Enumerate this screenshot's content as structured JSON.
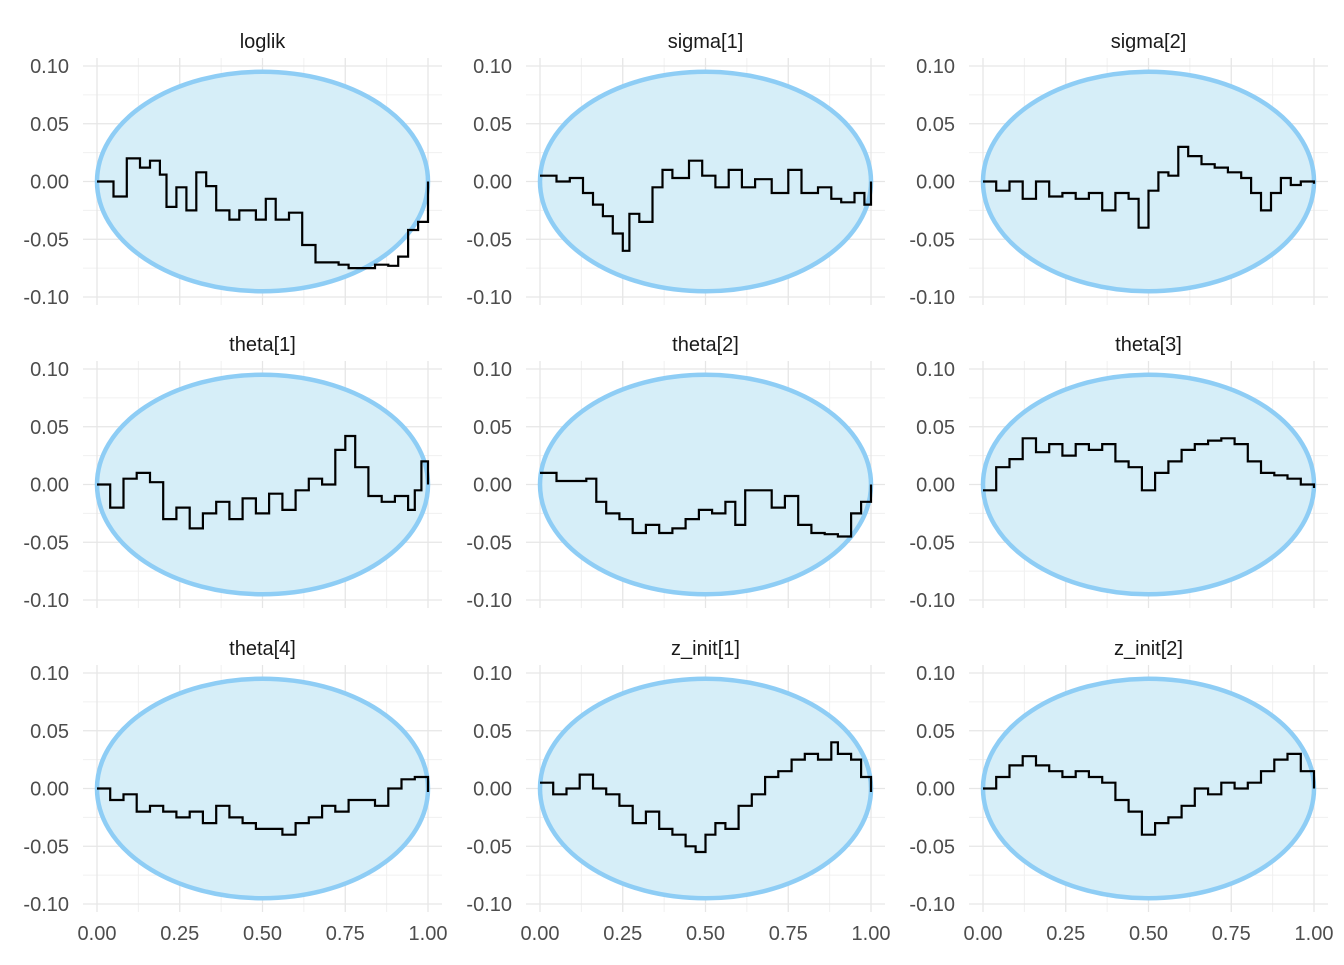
{
  "chart_data": {
    "type": "line",
    "layout": "3x3 facet grid",
    "grid": true,
    "band_color": "#D6EEF8",
    "band_border_color": "#8ECDF5",
    "line_color": "#000000",
    "xlim": [
      0,
      1
    ],
    "ylim": [
      -0.1,
      0.1
    ],
    "x_ticks": [
      "0.00",
      "0.25",
      "0.50",
      "0.75",
      "1.00"
    ],
    "y_ticks": [
      "0.10",
      "0.05",
      "0.00",
      "-0.05",
      "-0.10"
    ],
    "panels": [
      {
        "title": "loglik",
        "x": [
          0,
          0.05,
          0.09,
          0.13,
          0.16,
          0.19,
          0.21,
          0.24,
          0.27,
          0.3,
          0.33,
          0.36,
          0.4,
          0.43,
          0.48,
          0.51,
          0.54,
          0.58,
          0.62,
          0.66,
          0.7,
          0.73,
          0.76,
          0.8,
          0.84,
          0.88,
          0.91,
          0.94,
          0.97,
          1.0
        ],
        "y": [
          0,
          -0.013,
          0.02,
          0.012,
          0.018,
          0.006,
          -0.022,
          -0.005,
          -0.025,
          0.008,
          -0.004,
          -0.025,
          -0.033,
          -0.025,
          -0.033,
          -0.015,
          -0.033,
          -0.027,
          -0.055,
          -0.07,
          -0.07,
          -0.072,
          -0.075,
          -0.075,
          -0.072,
          -0.073,
          -0.065,
          -0.042,
          -0.035,
          0
        ]
      },
      {
        "title": "sigma[1]",
        "x": [
          0,
          0.05,
          0.09,
          0.13,
          0.16,
          0.19,
          0.22,
          0.25,
          0.27,
          0.3,
          0.34,
          0.37,
          0.4,
          0.45,
          0.49,
          0.53,
          0.57,
          0.61,
          0.65,
          0.7,
          0.75,
          0.79,
          0.84,
          0.88,
          0.91,
          0.95,
          0.98,
          1.0
        ],
        "y": [
          0.005,
          0.0,
          0.003,
          -0.01,
          -0.02,
          -0.03,
          -0.045,
          -0.06,
          -0.028,
          -0.035,
          -0.005,
          0.01,
          0.003,
          0.018,
          0.005,
          -0.005,
          0.01,
          -0.005,
          0.002,
          -0.01,
          0.01,
          -0.01,
          -0.005,
          -0.015,
          -0.018,
          -0.01,
          -0.02,
          0
        ]
      },
      {
        "title": "sigma[2]",
        "x": [
          0,
          0.04,
          0.08,
          0.12,
          0.16,
          0.2,
          0.24,
          0.28,
          0.32,
          0.36,
          0.4,
          0.44,
          0.47,
          0.5,
          0.53,
          0.56,
          0.59,
          0.62,
          0.66,
          0.7,
          0.74,
          0.78,
          0.81,
          0.84,
          0.87,
          0.9,
          0.93,
          0.96,
          1.0
        ],
        "y": [
          0,
          -0.008,
          0.0,
          -0.015,
          0.0,
          -0.013,
          -0.01,
          -0.015,
          -0.01,
          -0.025,
          -0.01,
          -0.015,
          -0.04,
          -0.008,
          0.008,
          0.005,
          0.03,
          0.022,
          0.015,
          0.012,
          0.008,
          0.003,
          -0.01,
          -0.025,
          -0.01,
          0.003,
          -0.003,
          0.0,
          -0.002
        ]
      },
      {
        "title": "theta[1]",
        "x": [
          0,
          0.04,
          0.08,
          0.12,
          0.16,
          0.2,
          0.24,
          0.28,
          0.32,
          0.36,
          0.4,
          0.44,
          0.48,
          0.52,
          0.56,
          0.6,
          0.64,
          0.68,
          0.72,
          0.75,
          0.78,
          0.82,
          0.86,
          0.9,
          0.94,
          0.96,
          0.98,
          1.0
        ],
        "y": [
          0,
          -0.02,
          0.005,
          0.01,
          0.002,
          -0.03,
          -0.02,
          -0.038,
          -0.025,
          -0.015,
          -0.03,
          -0.012,
          -0.025,
          -0.008,
          -0.022,
          -0.005,
          0.005,
          0.0,
          0.03,
          0.042,
          0.015,
          -0.01,
          -0.015,
          -0.01,
          -0.022,
          -0.005,
          0.02,
          0
        ]
      },
      {
        "title": "theta[2]",
        "x": [
          0,
          0.05,
          0.1,
          0.14,
          0.17,
          0.2,
          0.24,
          0.28,
          0.32,
          0.36,
          0.4,
          0.44,
          0.48,
          0.52,
          0.56,
          0.59,
          0.62,
          0.66,
          0.7,
          0.74,
          0.78,
          0.82,
          0.86,
          0.9,
          0.94,
          0.97,
          1.0
        ],
        "y": [
          0.01,
          0.003,
          0.003,
          0.005,
          -0.015,
          -0.025,
          -0.03,
          -0.042,
          -0.035,
          -0.042,
          -0.038,
          -0.03,
          -0.022,
          -0.025,
          -0.015,
          -0.035,
          -0.005,
          -0.005,
          -0.02,
          -0.01,
          -0.035,
          -0.042,
          -0.043,
          -0.045,
          -0.025,
          -0.015,
          0
        ]
      },
      {
        "title": "theta[3]",
        "x": [
          0,
          0.04,
          0.08,
          0.12,
          0.16,
          0.2,
          0.24,
          0.28,
          0.32,
          0.36,
          0.4,
          0.44,
          0.48,
          0.52,
          0.56,
          0.6,
          0.64,
          0.68,
          0.72,
          0.76,
          0.8,
          0.84,
          0.88,
          0.92,
          0.96,
          1.0
        ],
        "y": [
          -0.005,
          0.015,
          0.022,
          0.04,
          0.028,
          0.035,
          0.025,
          0.035,
          0.03,
          0.035,
          0.02,
          0.015,
          -0.005,
          0.01,
          0.02,
          0.03,
          0.035,
          0.038,
          0.04,
          0.035,
          0.02,
          0.01,
          0.008,
          0.005,
          0.0,
          -0.003
        ]
      },
      {
        "title": "theta[4]",
        "x": [
          0,
          0.04,
          0.08,
          0.12,
          0.16,
          0.2,
          0.24,
          0.28,
          0.32,
          0.36,
          0.4,
          0.44,
          0.48,
          0.52,
          0.56,
          0.6,
          0.64,
          0.68,
          0.72,
          0.76,
          0.8,
          0.84,
          0.88,
          0.92,
          0.96,
          1.0
        ],
        "y": [
          0,
          -0.01,
          -0.005,
          -0.02,
          -0.015,
          -0.02,
          -0.025,
          -0.02,
          -0.03,
          -0.015,
          -0.025,
          -0.03,
          -0.035,
          -0.035,
          -0.04,
          -0.03,
          -0.025,
          -0.015,
          -0.02,
          -0.01,
          -0.01,
          -0.015,
          0.0,
          0.008,
          0.01,
          -0.003
        ]
      },
      {
        "title": "z_init[1]",
        "x": [
          0,
          0.04,
          0.08,
          0.12,
          0.16,
          0.2,
          0.24,
          0.28,
          0.32,
          0.36,
          0.4,
          0.44,
          0.47,
          0.5,
          0.53,
          0.56,
          0.6,
          0.64,
          0.68,
          0.72,
          0.76,
          0.8,
          0.84,
          0.88,
          0.9,
          0.94,
          0.97,
          1.0
        ],
        "y": [
          0.005,
          -0.005,
          0.0,
          0.012,
          0.0,
          -0.005,
          -0.015,
          -0.03,
          -0.02,
          -0.035,
          -0.04,
          -0.05,
          -0.055,
          -0.04,
          -0.03,
          -0.035,
          -0.015,
          -0.005,
          0.01,
          0.015,
          0.025,
          0.03,
          0.025,
          0.04,
          0.03,
          0.025,
          0.01,
          -0.003
        ]
      },
      {
        "title": "z_init[2]",
        "x": [
          0,
          0.04,
          0.08,
          0.12,
          0.16,
          0.2,
          0.24,
          0.28,
          0.32,
          0.36,
          0.4,
          0.44,
          0.48,
          0.52,
          0.56,
          0.6,
          0.64,
          0.68,
          0.72,
          0.76,
          0.8,
          0.84,
          0.88,
          0.92,
          0.96,
          1.0
        ],
        "y": [
          0,
          0.01,
          0.02,
          0.028,
          0.02,
          0.015,
          0.01,
          0.015,
          0.01,
          0.005,
          -0.01,
          -0.02,
          -0.04,
          -0.03,
          -0.025,
          -0.015,
          0.0,
          -0.005,
          0.005,
          0.0,
          0.005,
          0.015,
          0.025,
          0.03,
          0.015,
          0.0
        ]
      }
    ]
  }
}
